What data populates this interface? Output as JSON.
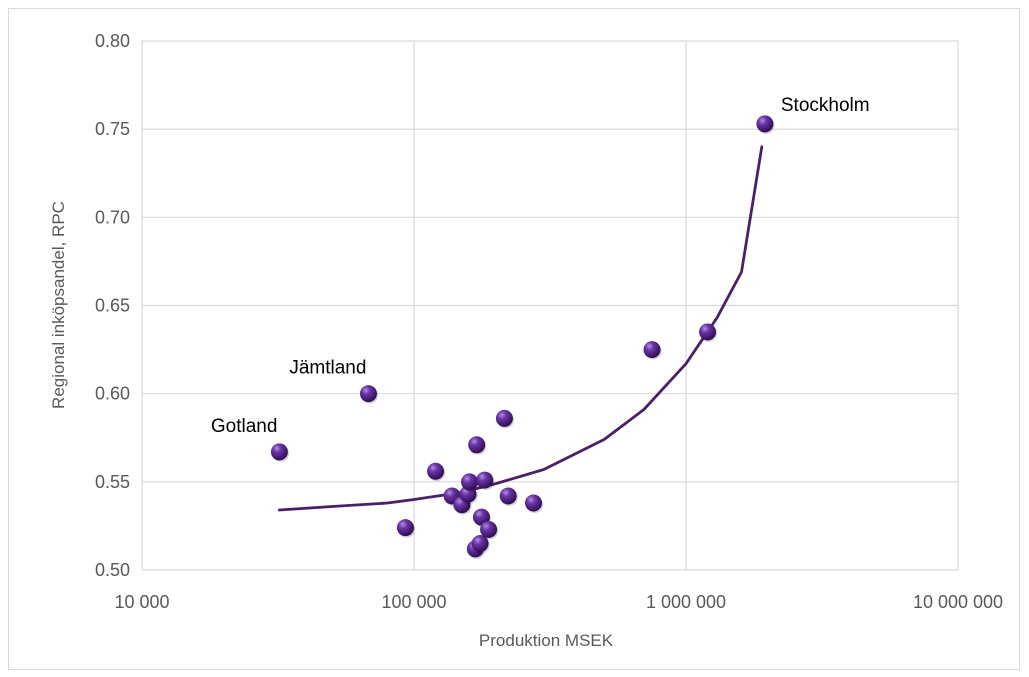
{
  "chart_data": {
    "type": "scatter",
    "title": "",
    "xlabel": "Produktion MSEK",
    "ylabel": "Regional inköpsandel, RPC",
    "x_scale": "log",
    "xlim": [
      10000,
      10000000
    ],
    "ylim": [
      0.5,
      0.8
    ],
    "x_ticks": [
      10000,
      100000,
      1000000,
      10000000
    ],
    "x_tick_labels": [
      "10 000",
      "100 000",
      "1 000 000",
      "10 000 000"
    ],
    "y_ticks": [
      0.5,
      0.55,
      0.6,
      0.65,
      0.7,
      0.75,
      0.8
    ],
    "y_tick_labels": [
      "0.50",
      "0.55",
      "0.60",
      "0.65",
      "0.70",
      "0.75",
      "0.80"
    ],
    "grid": true,
    "legend": "none",
    "colors": {
      "points": "#4b1f7a",
      "trendline": "#4a2069",
      "grid": "#d9d9d9",
      "text": "#595959"
    },
    "series": [
      {
        "values": [
          {
            "x": 32000,
            "y": 0.567,
            "label": "Gotland"
          },
          {
            "x": 68000,
            "y": 0.6,
            "label": "Jämtland"
          },
          {
            "x": 93000,
            "y": 0.524
          },
          {
            "x": 120000,
            "y": 0.556
          },
          {
            "x": 138000,
            "y": 0.542
          },
          {
            "x": 150000,
            "y": 0.537
          },
          {
            "x": 158000,
            "y": 0.543
          },
          {
            "x": 160000,
            "y": 0.55
          },
          {
            "x": 168000,
            "y": 0.512
          },
          {
            "x": 170000,
            "y": 0.571
          },
          {
            "x": 175000,
            "y": 0.515
          },
          {
            "x": 177000,
            "y": 0.53
          },
          {
            "x": 182000,
            "y": 0.551
          },
          {
            "x": 188000,
            "y": 0.523
          },
          {
            "x": 215000,
            "y": 0.586
          },
          {
            "x": 222000,
            "y": 0.542
          },
          {
            "x": 275000,
            "y": 0.538
          },
          {
            "x": 750000,
            "y": 0.625
          },
          {
            "x": 1200000,
            "y": 0.635
          },
          {
            "x": 1950000,
            "y": 0.753,
            "label": "Stockholm"
          }
        ]
      }
    ],
    "trendline": {
      "x": [
        32000,
        50000,
        80000,
        100000,
        150000,
        200000,
        300000,
        500000,
        700000,
        1000000,
        1300000,
        1600000,
        1900000
      ],
      "y": [
        0.534,
        0.536,
        0.538,
        0.54,
        0.544,
        0.549,
        0.557,
        0.574,
        0.591,
        0.617,
        0.643,
        0.669,
        0.74
      ]
    }
  }
}
